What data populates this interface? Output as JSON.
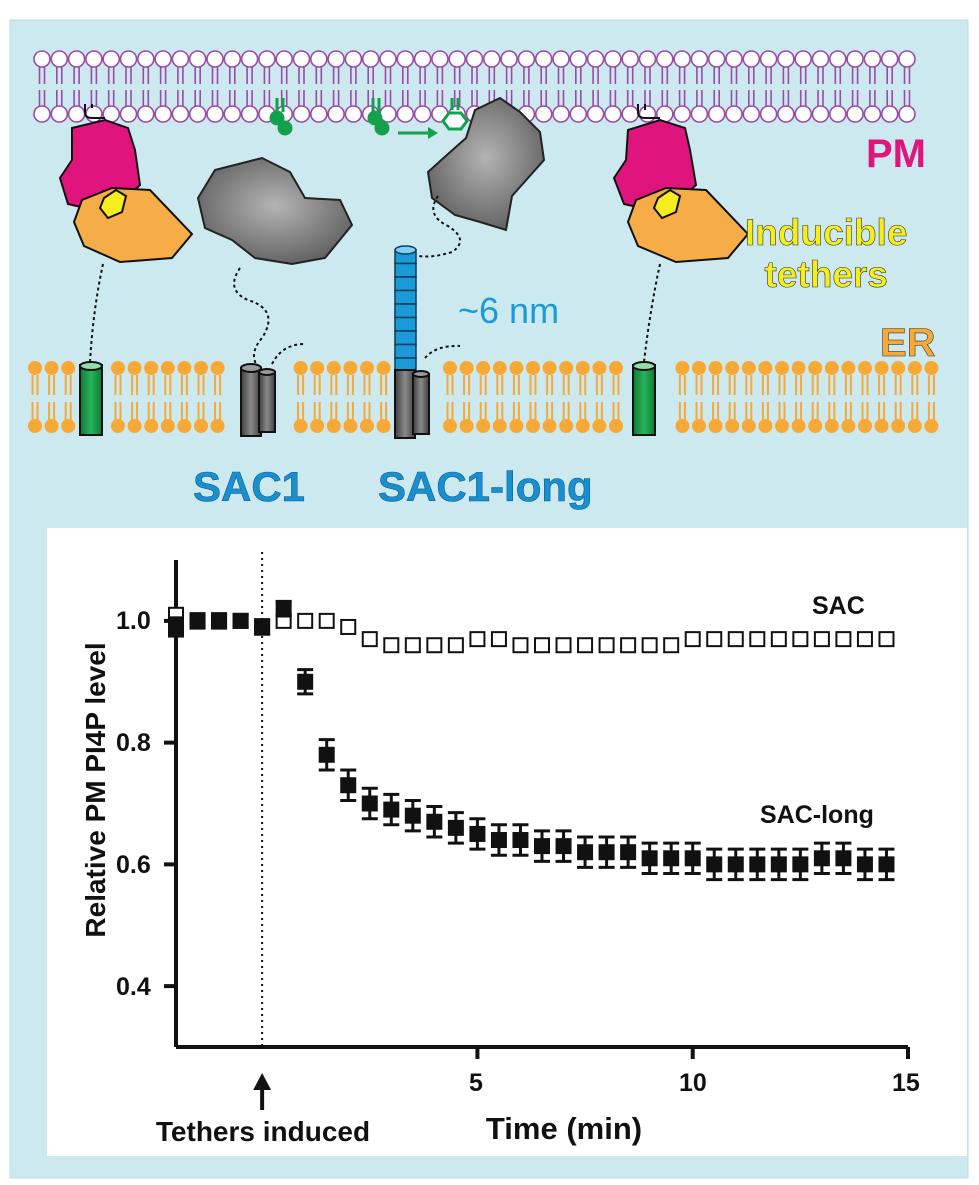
{
  "colors": {
    "background": "#cce9f0",
    "pm_lipid": "#9b4aa6",
    "er_lipid": "#f7a835",
    "tether_magenta": "#e0147d",
    "tether_orange": "#f6ad48",
    "tether_yellow": "#f5ee1c",
    "sac_protein": "#6b6b6b",
    "linker_blue": "#1a9ad7",
    "anchor_green": "#11973f",
    "pi4p_green": "#13a14b"
  },
  "diagram": {
    "pm_label": "PM",
    "tether_label_line1": "Inducible",
    "tether_label_line2": "tethers",
    "er_label": "ER",
    "linker_length_label": "~6 nm",
    "sac1_label": "SAC1",
    "sac1_long_label": "SAC1-long",
    "icons": [
      "lipid-bilayer-icon",
      "pi4p-headgroup-icon",
      "reaction-arrow-icon",
      "transmembrane-helix-icon"
    ]
  },
  "chart_data": {
    "type": "scatter",
    "title": "",
    "xlabel": "Time (min)",
    "ylabel": "Relative PM PI4P level",
    "xlim": [
      -2,
      15
    ],
    "ylim": [
      0.3,
      1.1
    ],
    "x_ticks": [
      5,
      10,
      15
    ],
    "y_ticks": [
      0.4,
      0.6,
      0.8,
      1.0
    ],
    "x_tick_labels": [
      "5",
      "10",
      "15"
    ],
    "y_tick_labels": [
      "0.4",
      "0.6",
      "0.8",
      "1.0"
    ],
    "annotation": {
      "text": "Tethers induced",
      "x": 0
    },
    "series": [
      {
        "name": "SAC",
        "marker": "open-square",
        "x": [
          -2,
          -1.5,
          -1,
          -0.5,
          0,
          0.5,
          1,
          1.5,
          2,
          2.5,
          3,
          3.5,
          4,
          4.5,
          5,
          5.5,
          6,
          6.5,
          7,
          7.5,
          8,
          8.5,
          9,
          9.5,
          10,
          10.5,
          11,
          11.5,
          12,
          12.5,
          13,
          13.5,
          14,
          14.5
        ],
        "values": [
          1.01,
          1.0,
          1.0,
          1.0,
          0.99,
          1.0,
          1.0,
          1.0,
          0.99,
          0.97,
          0.96,
          0.96,
          0.96,
          0.96,
          0.97,
          0.97,
          0.96,
          0.96,
          0.96,
          0.96,
          0.96,
          0.96,
          0.96,
          0.96,
          0.97,
          0.97,
          0.97,
          0.97,
          0.97,
          0.97,
          0.97,
          0.97,
          0.97,
          0.97
        ],
        "errors": [
          0.008,
          0.006,
          0.006,
          0.006,
          0.006,
          0.006,
          0.006,
          0.006,
          0.006,
          0.006,
          0.006,
          0.006,
          0.006,
          0.006,
          0.006,
          0.006,
          0.006,
          0.006,
          0.006,
          0.006,
          0.006,
          0.006,
          0.006,
          0.006,
          0.006,
          0.006,
          0.006,
          0.006,
          0.006,
          0.006,
          0.006,
          0.006,
          0.006,
          0.006
        ]
      },
      {
        "name": "SAC-long",
        "marker": "filled-square",
        "x": [
          -2,
          -1.5,
          -1,
          -0.5,
          0,
          0.5,
          1,
          1.5,
          2,
          2.5,
          3,
          3.5,
          4,
          4.5,
          5,
          5.5,
          6,
          6.5,
          7,
          7.5,
          8,
          8.5,
          9,
          9.5,
          10,
          10.5,
          11,
          11.5,
          12,
          12.5,
          13,
          13.5,
          14,
          14.5
        ],
        "values": [
          0.99,
          1.0,
          1.0,
          1.0,
          0.99,
          1.02,
          0.9,
          0.78,
          0.73,
          0.7,
          0.69,
          0.68,
          0.67,
          0.66,
          0.65,
          0.64,
          0.64,
          0.63,
          0.63,
          0.62,
          0.62,
          0.62,
          0.61,
          0.61,
          0.61,
          0.6,
          0.6,
          0.6,
          0.6,
          0.6,
          0.61,
          0.61,
          0.6,
          0.6
        ],
        "errors": [
          0.015,
          0.012,
          0.012,
          0.01,
          0.012,
          0.012,
          0.02,
          0.025,
          0.025,
          0.025,
          0.025,
          0.025,
          0.025,
          0.025,
          0.025,
          0.025,
          0.025,
          0.025,
          0.025,
          0.025,
          0.025,
          0.025,
          0.025,
          0.025,
          0.025,
          0.025,
          0.025,
          0.025,
          0.025,
          0.025,
          0.025,
          0.025,
          0.025,
          0.025
        ]
      }
    ]
  }
}
